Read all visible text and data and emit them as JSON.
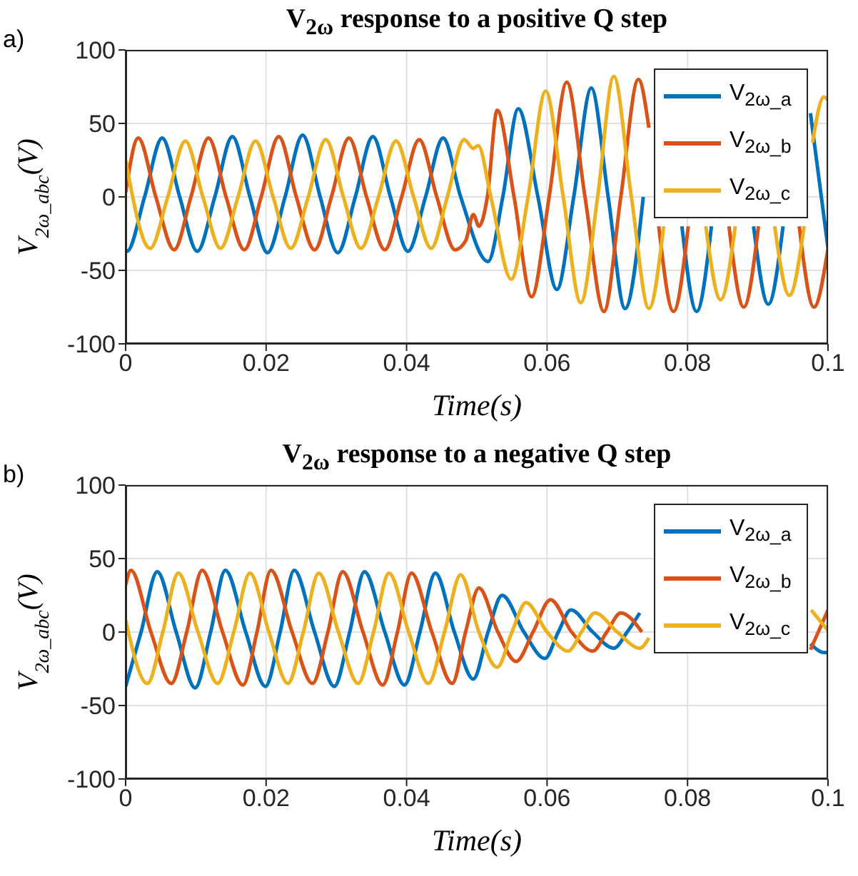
{
  "chart_data": [
    {
      "type": "line",
      "title": "V$_{2ω}$ response to a positive Q step",
      "xlabel": "Time(s)",
      "ylabel": "V$_{2ω_abc}$(V)",
      "annotations": [
        "a)"
      ],
      "xlim": [
        0,
        0.1
      ],
      "xticks": [
        0,
        0.02,
        0.04,
        0.06,
        0.08,
        0.1
      ],
      "ylim": [
        -100,
        100
      ],
      "yticks": [
        -100,
        -50,
        0,
        50,
        100
      ],
      "grid": true,
      "legend": "top right",
      "series": [
        {
          "name": "V$_{2ω_a}$",
          "color": "#0072bd",
          "x": [
            0,
            0.0002,
            0.0027,
            0.0052,
            0.0077,
            0.0102,
            0.0127,
            0.0152,
            0.0177,
            0.0202,
            0.0227,
            0.0252,
            0.0277,
            0.0302,
            0.0327,
            0.0352,
            0.0377,
            0.0402,
            0.0427,
            0.0452,
            0.0477,
            0.0516,
            0.0537,
            0.0559,
            0.0587,
            0.0614,
            0.0638,
            0.0663,
            0.0687,
            0.0711,
            0.0737,
            0.0762,
            0.0792,
            0.0813,
            0.0834,
            0.0864,
            0.0894,
            0.0915,
            0.0936,
            0.0965,
            0.0975,
            0.1
          ],
          "values": [
            -36,
            -37,
            0,
            40,
            0,
            -37,
            0,
            41,
            0,
            -38,
            0,
            42,
            0,
            -38,
            0,
            41,
            0,
            -37,
            0,
            40,
            0,
            -44,
            0,
            60,
            0,
            -63,
            0,
            74,
            0,
            -76,
            0,
            null,
            -20,
            -78,
            -20,
            null,
            -20,
            -73,
            -20,
            null,
            57,
            -35
          ]
        },
        {
          "name": "V$_{2ω_b}$",
          "color": "#d95319",
          "x": [
            0,
            0.0018,
            0.0043,
            0.0069,
            0.0093,
            0.0118,
            0.0143,
            0.0169,
            0.0193,
            0.0218,
            0.0243,
            0.0269,
            0.0293,
            0.0318,
            0.0343,
            0.0369,
            0.0393,
            0.0418,
            0.0443,
            0.0469,
            0.0484,
            0.0495,
            0.0503,
            0.0515,
            0.0529,
            0.0553,
            0.0578,
            0.0603,
            0.0628,
            0.0654,
            0.0681,
            0.0705,
            0.073,
            0.0745,
            0.0752,
            0.0759,
            0.078,
            0.0801,
            0.083,
            0.0859,
            0.088,
            0.0901,
            0.093,
            0.0959,
            0.098,
            0.1
          ],
          "values": [
            3,
            40,
            0,
            -36,
            0,
            40,
            0,
            -36,
            0,
            41,
            0,
            -36,
            0,
            40,
            0,
            -36,
            0,
            39,
            0,
            -36,
            -30,
            -12,
            -20,
            0,
            59,
            0,
            -68,
            0,
            78,
            0,
            -78,
            0,
            80,
            47,
            null,
            -20,
            -78,
            -20,
            null,
            -20,
            -75,
            -20,
            null,
            -20,
            -75,
            -35
          ]
        },
        {
          "name": "V$_{2ω_c}$",
          "color": "#edb120",
          "x": [
            0,
            0.0035,
            0.006,
            0.0085,
            0.011,
            0.0135,
            0.016,
            0.0185,
            0.021,
            0.0235,
            0.026,
            0.0285,
            0.031,
            0.0335,
            0.036,
            0.0385,
            0.041,
            0.0435,
            0.0458,
            0.0482,
            0.0495,
            0.0502,
            0.052,
            0.0549,
            0.0573,
            0.0598,
            0.0623,
            0.0648,
            0.0672,
            0.0695,
            0.072,
            0.0745,
            0.0766,
            0.0795,
            0.0826,
            0.0847,
            0.0868,
            0.0895,
            0.0924,
            0.0945,
            0.0966,
            0.097,
            0.0978,
            0.0994,
            0.1
          ],
          "values": [
            25,
            -35,
            0,
            38,
            0,
            -35,
            0,
            38,
            0,
            -35,
            0,
            39,
            0,
            -35,
            0,
            38,
            0,
            -35,
            0,
            39,
            33,
            35,
            0,
            -56,
            0,
            72,
            0,
            -72,
            0,
            82,
            0,
            -76,
            -20,
            null,
            -20,
            -70,
            -20,
            null,
            -20,
            -67,
            -20,
            null,
            37,
            68,
            66
          ]
        }
      ]
    },
    {
      "type": "line",
      "title": "V$_{2ω}$ response to a negative Q step",
      "xlabel": "Time(s)",
      "ylabel": "V$_{2ω_abc}$(V)",
      "annotations": [
        "b)"
      ],
      "xlim": [
        0,
        0.1
      ],
      "xticks": [
        0,
        0.02,
        0.04,
        0.06,
        0.08,
        0.1
      ],
      "ylim": [
        -100,
        100
      ],
      "yticks": [
        -100,
        -50,
        0,
        50,
        100
      ],
      "grid": true,
      "legend": "top right",
      "series": [
        {
          "name": "V$_{2ω_a}$",
          "color": "#0072bd",
          "x": [
            0,
            0.0022,
            0.0045,
            0.0072,
            0.0099,
            0.0121,
            0.0142,
            0.0171,
            0.0199,
            0.022,
            0.024,
            0.0269,
            0.0297,
            0.0319,
            0.034,
            0.0369,
            0.0397,
            0.0419,
            0.0441,
            0.0468,
            0.0495,
            0.0516,
            0.0536,
            0.0567,
            0.0597,
            0.0616,
            0.0634,
            0.0665,
            0.0695,
            0.0714,
            0.0732,
            0.0764,
            0.0795,
            0.0813,
            0.083,
            0.0863,
            0.0895,
            0.0915,
            0.0935,
            0.0975,
            0.0995,
            0.1
          ],
          "values": [
            -37,
            0,
            41,
            0,
            -38,
            0,
            42,
            0,
            -37,
            0,
            42,
            0,
            -37,
            0,
            41,
            0,
            -36,
            0,
            40,
            0,
            -32,
            0,
            25,
            0,
            -18,
            0,
            15,
            0,
            -11,
            0,
            13,
            null,
            null,
            null,
            null,
            null,
            null,
            null,
            null,
            -8,
            -14,
            -14
          ]
        },
        {
          "name": "V$_{2ω_b}$",
          "color": "#d95319",
          "x": [
            0,
            0.00075,
            0.0036,
            0.0065,
            0.0087,
            0.0109,
            0.0138,
            0.0167,
            0.0187,
            0.0207,
            0.0237,
            0.0266,
            0.0288,
            0.0309,
            0.0338,
            0.0366,
            0.0387,
            0.0407,
            0.0436,
            0.0465,
            0.0484,
            0.0503,
            0.053,
            0.0556,
            0.058,
            0.0605,
            0.0635,
            0.0665,
            0.0685,
            0.0705,
            0.0735,
            0.0765,
            0.0788,
            0.081,
            0.0838,
            0.0865,
            0.0888,
            0.091,
            0.0938,
            0.0975,
            0.1
          ],
          "values": [
            32,
            42,
            0,
            -35,
            0,
            42,
            0,
            -36,
            0,
            42,
            0,
            -35,
            0,
            41,
            0,
            -36,
            0,
            40,
            0,
            -35,
            0,
            30,
            0,
            -20,
            0,
            22,
            0,
            -13,
            0,
            13,
            0,
            null,
            null,
            null,
            null,
            null,
            null,
            null,
            null,
            -12,
            15
          ]
        },
        {
          "name": "V$_{2ω_c}$",
          "color": "#edb120",
          "x": [
            0,
            0.0031,
            0.0053,
            0.0075,
            0.0103,
            0.0131,
            0.0154,
            0.0177,
            0.0204,
            0.0231,
            0.0253,
            0.0275,
            0.0303,
            0.0331,
            0.0353,
            0.0375,
            0.0403,
            0.0431,
            0.0454,
            0.0477,
            0.0503,
            0.0529,
            0.055,
            0.057,
            0.06,
            0.063,
            0.0649,
            0.0668,
            0.07,
            0.0732,
            0.0745,
            0.077,
            0.08,
            0.083,
            0.085,
            0.087,
            0.0901,
            0.0932,
            0.0953,
            0.0976,
            0.1
          ],
          "values": [
            8,
            -35,
            0,
            40,
            0,
            -35,
            0,
            40,
            0,
            -35,
            0,
            40,
            0,
            -35,
            0,
            40,
            0,
            -35,
            0,
            39,
            0,
            -24,
            0,
            20,
            0,
            -13,
            0,
            13,
            0,
            -11,
            -4,
            null,
            null,
            null,
            null,
            null,
            null,
            null,
            null,
            15,
            1
          ]
        }
      ]
    }
  ]
}
